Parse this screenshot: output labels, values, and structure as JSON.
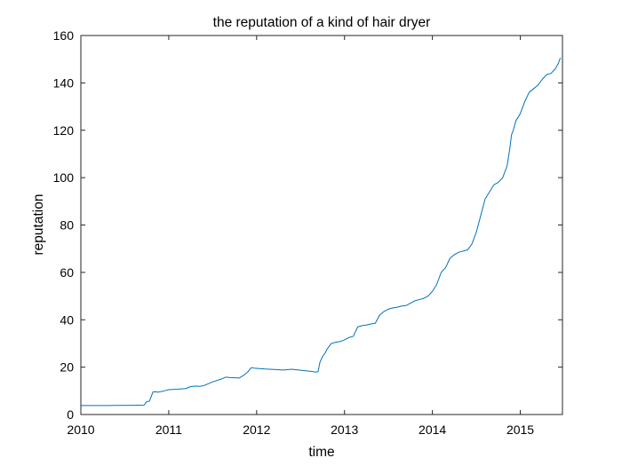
{
  "chart_data": {
    "type": "line",
    "title": "the reputation of a kind of hair dryer",
    "xlabel": "time",
    "ylabel": "reputation",
    "xlim": [
      2010,
      2015.48
    ],
    "ylim": [
      0,
      160
    ],
    "xticks": [
      2010,
      2011,
      2012,
      2013,
      2014,
      2015
    ],
    "xtick_labels": [
      "2010",
      "2011",
      "2012",
      "2013",
      "2014",
      "2015"
    ],
    "yticks": [
      0,
      20,
      40,
      60,
      80,
      100,
      120,
      140,
      160
    ],
    "ytick_labels": [
      "0",
      "20",
      "40",
      "60",
      "80",
      "100",
      "120",
      "140",
      "160"
    ],
    "grid": false,
    "legend": false,
    "series": [
      {
        "color": "#0072BD",
        "x": [
          2010.0,
          2010.3,
          2010.6,
          2010.72,
          2010.75,
          2010.78,
          2010.8,
          2010.82,
          2010.85,
          2010.88,
          2010.9,
          2010.95,
          2011.0,
          2011.05,
          2011.1,
          2011.2,
          2011.25,
          2011.3,
          2011.35,
          2011.4,
          2011.45,
          2011.5,
          2011.6,
          2011.65,
          2011.7,
          2011.8,
          2011.85,
          2011.9,
          2011.93,
          2011.95,
          2011.97,
          2012.0,
          2012.1,
          2012.2,
          2012.3,
          2012.4,
          2012.5,
          2012.6,
          2012.68,
          2012.7,
          2012.72,
          2012.75,
          2012.78,
          2012.8,
          2012.85,
          2012.9,
          2012.95,
          2013.0,
          2013.05,
          2013.1,
          2013.15,
          2013.2,
          2013.25,
          2013.3,
          2013.35,
          2013.4,
          2013.45,
          2013.5,
          2013.55,
          2013.6,
          2013.65,
          2013.7,
          2013.75,
          2013.8,
          2013.85,
          2013.9,
          2013.95,
          2014.0,
          2014.05,
          2014.1,
          2014.15,
          2014.2,
          2014.25,
          2014.3,
          2014.35,
          2014.4,
          2014.45,
          2014.5,
          2014.55,
          2014.6,
          2014.65,
          2014.7,
          2014.75,
          2014.8,
          2014.85,
          2014.88,
          2014.9,
          2014.92,
          2014.95,
          2015.0,
          2015.05,
          2015.1,
          2015.15,
          2015.2,
          2015.25,
          2015.3,
          2015.35,
          2015.4,
          2015.43,
          2015.45,
          2015.46
        ],
        "y": [
          3.8,
          3.8,
          3.9,
          4.0,
          5.5,
          5.6,
          7.5,
          9.5,
          9.6,
          9.4,
          9.6,
          10.0,
          10.5,
          10.6,
          10.7,
          11.0,
          11.8,
          12.0,
          11.9,
          12.2,
          13.0,
          13.8,
          15.0,
          15.8,
          15.6,
          15.4,
          16.5,
          18.0,
          19.5,
          19.8,
          19.6,
          19.5,
          19.2,
          19.0,
          18.8,
          19.1,
          18.7,
          18.3,
          17.9,
          18.2,
          22.0,
          24.5,
          26.0,
          27.5,
          30.0,
          30.5,
          30.8,
          31.5,
          32.5,
          33.0,
          37.0,
          37.5,
          37.8,
          38.2,
          38.5,
          42.0,
          43.5,
          44.5,
          45.0,
          45.3,
          45.8,
          46.0,
          47.0,
          48.0,
          48.5,
          49.0,
          50.0,
          52.0,
          55.0,
          60.0,
          62.0,
          66.0,
          67.5,
          68.5,
          69.0,
          69.5,
          72.0,
          77.0,
          84.0,
          91.0,
          94.0,
          97.0,
          98.0,
          100.0,
          105.0,
          112.0,
          118.0,
          120.0,
          124.0,
          127.0,
          132.0,
          136.0,
          137.5,
          139.0,
          141.5,
          143.5,
          144.0,
          146.0,
          148.0,
          150.0,
          150.5
        ]
      }
    ]
  }
}
